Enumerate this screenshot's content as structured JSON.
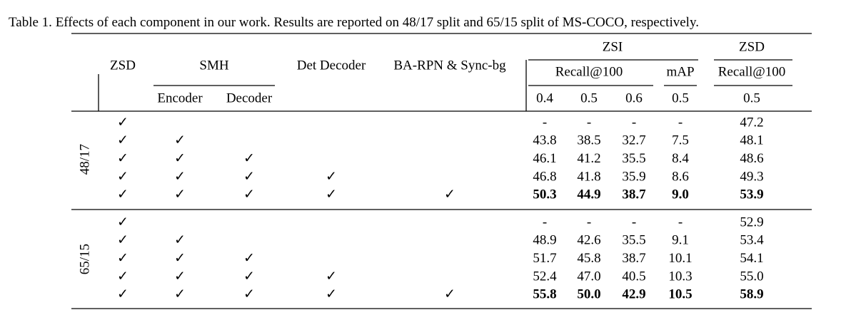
{
  "caption": {
    "label": "Table 1.",
    "text": "Effects of each component in our work. Results are reported on 48/17 split and 65/15 split of MS-COCO, respectively."
  },
  "header": {
    "zsi": "ZSI",
    "zsd_group": "ZSD",
    "zsd": "ZSD",
    "smh": "SMH",
    "det_decoder": "Det Decoder",
    "ba_rpn": "BA-RPN & Sync-bg",
    "recall_zsi": "Recall@100",
    "map": "mAP",
    "recall_zsd": "Recall@100",
    "encoder": "Encoder",
    "decoder": "Decoder",
    "thresholds": [
      "0.4",
      "0.5",
      "0.6",
      "0.5",
      "0.5"
    ]
  },
  "groups": [
    {
      "label": "48/17",
      "bold_rows": [
        4
      ],
      "rows": [
        [
          "✓",
          null,
          null,
          null,
          null,
          "-",
          "-",
          "-",
          "-",
          "47.2"
        ],
        [
          "✓",
          "✓",
          null,
          null,
          null,
          "43.8",
          "38.5",
          "32.7",
          "7.5",
          "48.1"
        ],
        [
          "✓",
          "✓",
          "✓",
          null,
          null,
          "46.1",
          "41.2",
          "35.5",
          "8.4",
          "48.6"
        ],
        [
          "✓",
          "✓",
          "✓",
          "✓",
          null,
          "46.8",
          "41.8",
          "35.9",
          "8.6",
          "49.3"
        ],
        [
          "✓",
          "✓",
          "✓",
          "✓",
          "✓",
          "50.3",
          "44.9",
          "38.7",
          "9.0",
          "53.9"
        ]
      ]
    },
    {
      "label": "65/15",
      "bold_rows": [
        4
      ],
      "rows": [
        [
          "✓",
          null,
          null,
          null,
          null,
          "-",
          "-",
          "-",
          "-",
          "52.9"
        ],
        [
          "✓",
          "✓",
          null,
          null,
          null,
          "48.9",
          "42.6",
          "35.5",
          "9.1",
          "53.4"
        ],
        [
          "✓",
          "✓",
          "✓",
          null,
          null,
          "51.7",
          "45.8",
          "38.7",
          "10.1",
          "54.1"
        ],
        [
          "✓",
          "✓",
          "✓",
          "✓",
          null,
          "52.4",
          "47.0",
          "40.5",
          "10.3",
          "55.0"
        ],
        [
          "✓",
          "✓",
          "✓",
          "✓",
          "✓",
          "55.8",
          "50.0",
          "42.9",
          "10.5",
          "58.9"
        ]
      ]
    }
  ]
}
